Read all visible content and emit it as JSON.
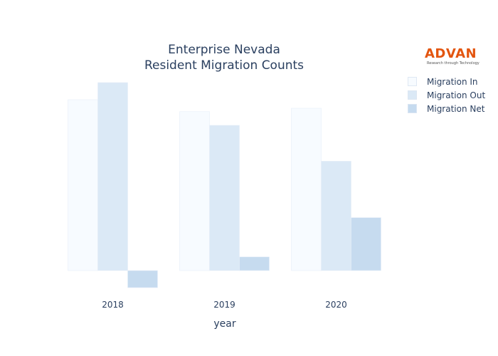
{
  "colors": {
    "migration_in": "#f7fbff",
    "migration_out": "#dbe9f6",
    "migration_net": "#c6dbef",
    "bar_outline": "#e6eef8",
    "logo": "#e3550f"
  },
  "logo": {
    "text": "ADVAN",
    "tagline": "Research through Technology"
  },
  "chart_data": {
    "type": "bar",
    "title": [
      "Enterprise Nevada",
      "Resident Migration Counts"
    ],
    "xlabel": "year",
    "ylabel": "",
    "categories": [
      "2018",
      "2019",
      "2020"
    ],
    "series": [
      {
        "name": "Migration In",
        "values": [
          10000,
          9300,
          9500
        ]
      },
      {
        "name": "Migration Out",
        "values": [
          11000,
          8500,
          6400
        ]
      },
      {
        "name": "Migration Net",
        "values": [
          -1000,
          800,
          3100
        ]
      }
    ],
    "ylim": [
      -1100,
      11500
    ],
    "grid": false,
    "y_ticks_visible": false,
    "legend_position": "right"
  }
}
